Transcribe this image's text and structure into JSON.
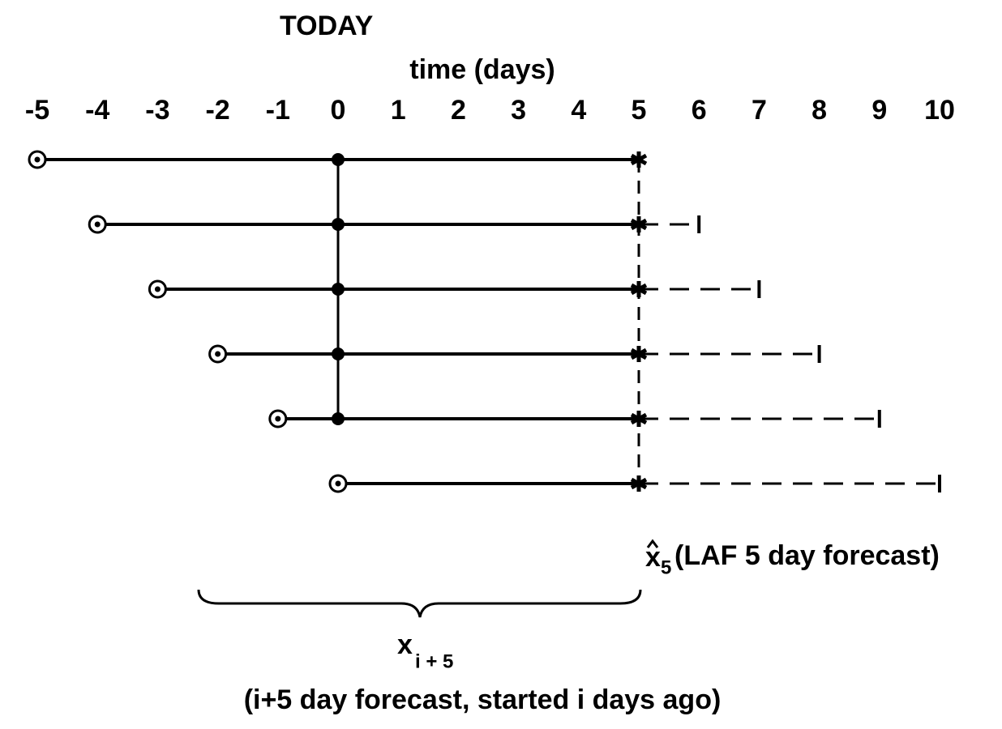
{
  "header": "TODAY",
  "axis": {
    "label": "time (days)",
    "ticks": [
      -5,
      -4,
      -3,
      -2,
      -1,
      0,
      1,
      2,
      3,
      4,
      5,
      6,
      7,
      8,
      9,
      10
    ]
  },
  "today": 0,
  "target": 5,
  "forecasts": [
    {
      "start": -5,
      "end": 5
    },
    {
      "start": -4,
      "end": 6
    },
    {
      "start": -3,
      "end": 7
    },
    {
      "start": -2,
      "end": 8
    },
    {
      "start": -1,
      "end": 9
    },
    {
      "start": 0,
      "end": 10
    }
  ],
  "target_label": {
    "symbol": "x",
    "subscript": "5",
    "text": "(LAF 5 day forecast)"
  },
  "ensemble_label": {
    "symbol": "x",
    "subscript": "i + 5",
    "caption": "(i+5  day forecast, started i days ago)"
  }
}
